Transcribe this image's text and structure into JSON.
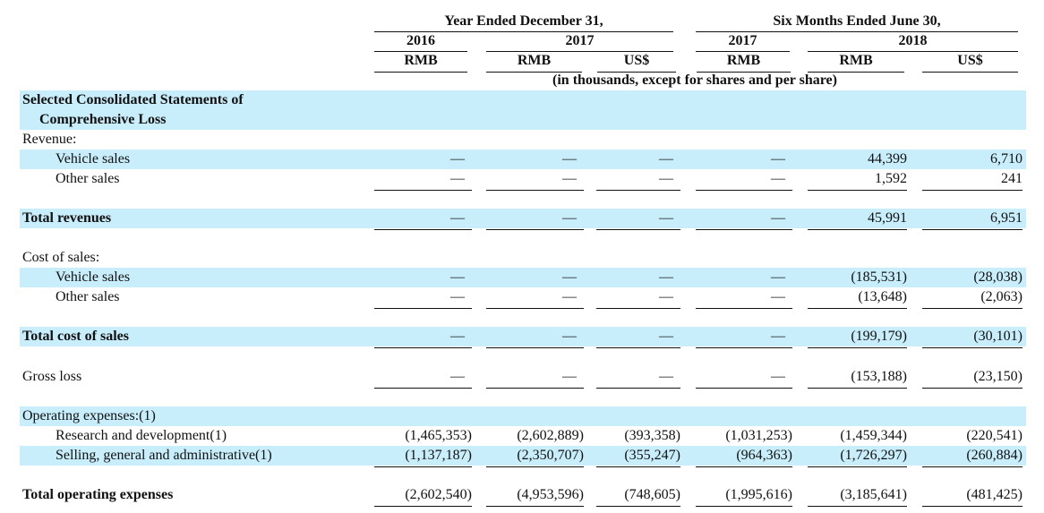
{
  "header": {
    "groups": [
      "Year Ended December 31,",
      "Six Months Ended June 30,"
    ],
    "years": [
      "2016",
      "2017",
      "2017",
      "2018"
    ],
    "currencies": [
      "RMB",
      "RMB",
      "US$",
      "RMB",
      "RMB",
      "US$"
    ],
    "note": "(in thousands, except for shares and per share)"
  },
  "section": [
    "Selected Consolidated Statements of",
    "Comprehensive Loss"
  ],
  "rows": [
    {
      "label": "Revenue:"
    },
    {
      "label": "Vehicle sales",
      "cells": [
        "—",
        "—",
        "—",
        "—",
        "44,399",
        "6,710"
      ]
    },
    {
      "label": "Other sales",
      "cells": [
        "—",
        "—",
        "—",
        "—",
        "1,592",
        "241"
      ]
    },
    {
      "label": "Total revenues",
      "cells": [
        "—",
        "—",
        "—",
        "—",
        "45,991",
        "6,951"
      ]
    },
    {
      "label": "Cost of sales:"
    },
    {
      "label": "Vehicle sales",
      "cells": [
        "—",
        "—",
        "—",
        "—",
        "(185,531)",
        "(28,038)"
      ]
    },
    {
      "label": "Other sales",
      "cells": [
        "—",
        "—",
        "—",
        "—",
        "(13,648)",
        "(2,063)"
      ]
    },
    {
      "label": "Total cost of sales",
      "cells": [
        "—",
        "—",
        "—",
        "—",
        "(199,179)",
        "(30,101)"
      ]
    },
    {
      "label": "Gross loss",
      "cells": [
        "—",
        "—",
        "—",
        "—",
        "(153,188)",
        "(23,150)"
      ]
    },
    {
      "label": "Operating expenses:(1)"
    },
    {
      "label": "Research and development(1)",
      "cells": [
        "(1,465,353)",
        "(2,602,889)",
        "(393,358)",
        "(1,031,253)",
        "(1,459,344)",
        "(220,541)"
      ]
    },
    {
      "label": "Selling, general and administrative(1)",
      "cells": [
        "(1,137,187)",
        "(2,350,707)",
        "(355,247)",
        "(964,363)",
        "(1,726,297)",
        "(260,884)"
      ]
    },
    {
      "label": "Total operating expenses",
      "cells": [
        "(2,602,540)",
        "(4,953,596)",
        "(748,605)",
        "(1,995,616)",
        "(3,185,641)",
        "(481,425)"
      ]
    }
  ]
}
